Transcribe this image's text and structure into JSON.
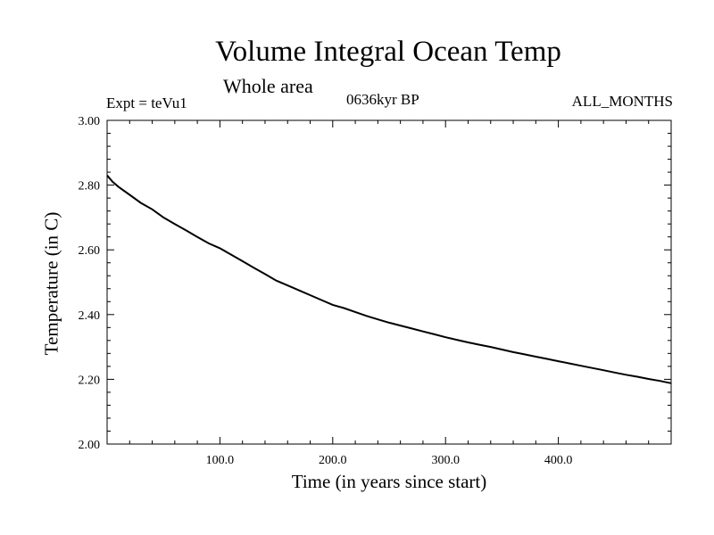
{
  "chart_data": {
    "type": "line",
    "title": "Volume Integral Ocean Temp",
    "subtitle": "Whole area",
    "experiment_label": "Expt = teVu1",
    "period_label": "0636kyr BP",
    "months_label": "ALL_MONTHS",
    "xlabel": "Time (in years since start)",
    "ylabel": "Temperature (in C)",
    "xlim": [
      0,
      500
    ],
    "ylim": [
      2.0,
      3.0
    ],
    "x_ticks": [
      "100.0",
      "200.0",
      "300.0",
      "400.0"
    ],
    "y_ticks": [
      "2.00",
      "2.20",
      "2.40",
      "2.60",
      "2.80",
      "3.00"
    ],
    "grid": false,
    "series": [
      {
        "color": "#000000",
        "x": [
          0,
          5,
          10,
          20,
          30,
          40,
          50,
          60,
          70,
          80,
          90,
          100,
          110,
          120,
          130,
          140,
          150,
          160,
          170,
          180,
          190,
          200,
          210,
          220,
          230,
          240,
          250,
          260,
          270,
          280,
          290,
          300,
          310,
          320,
          330,
          340,
          350,
          360,
          370,
          380,
          390,
          400,
          410,
          420,
          430,
          440,
          450,
          460,
          470,
          480,
          490,
          500
        ],
        "y": [
          2.83,
          2.81,
          2.795,
          2.77,
          2.745,
          2.725,
          2.7,
          2.68,
          2.66,
          2.64,
          2.62,
          2.605,
          2.585,
          2.565,
          2.545,
          2.525,
          2.505,
          2.49,
          2.475,
          2.46,
          2.445,
          2.43,
          2.42,
          2.408,
          2.396,
          2.385,
          2.375,
          2.366,
          2.357,
          2.348,
          2.339,
          2.33,
          2.322,
          2.314,
          2.307,
          2.3,
          2.292,
          2.284,
          2.277,
          2.27,
          2.263,
          2.256,
          2.249,
          2.242,
          2.235,
          2.228,
          2.221,
          2.214,
          2.208,
          2.201,
          2.195,
          2.188
        ]
      }
    ]
  }
}
